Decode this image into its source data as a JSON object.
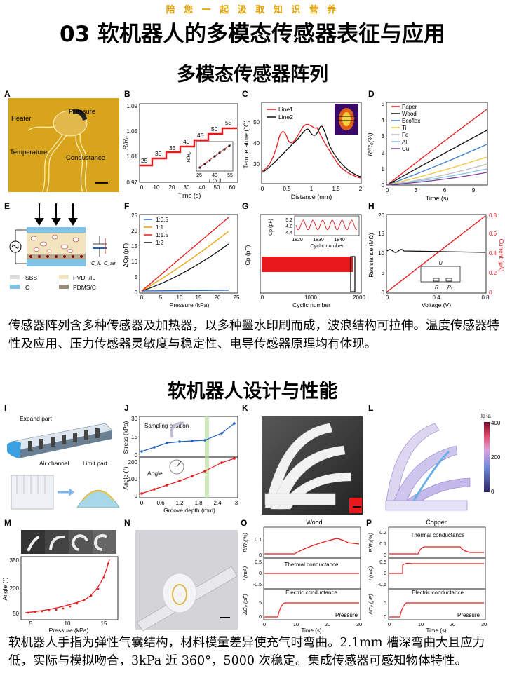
{
  "banner": "陪 您 一 起 汲 取 知 识 营 养",
  "title": "03 软机器人的多模态传感器表征与应用",
  "section1": {
    "title": "多模态传感器阵列",
    "caption": "传感器阵列含多种传感器及加热器，以多种墨水印刷而成，波浪结构可拉伸。温度传感器特性及应用、压力传感器灵敏度与稳定性、电导传感器原理均有体现。"
  },
  "section2": {
    "title": "软机器人设计与性能",
    "caption": "软机器人手指为弹性气囊结构，材料模量差异使充气时弯曲。2.1mm 槽深弯曲大且应力低，实际与模拟吻合，3kPa 近 360°，5000 次稳定。集成传感器可感知物体特性。"
  },
  "panels": {
    "A": {
      "label": "A",
      "heater": "Heater",
      "pressure": "Pressure",
      "temperature": "Temperature",
      "conductance": "Conductance"
    },
    "B": {
      "label": "B",
      "ylabel": "R/R₀",
      "xlabel": "Time (s)",
      "yticks": [
        "0.97",
        "1.01",
        "1.05",
        "1.09"
      ],
      "xticks": [
        "0",
        "10",
        "20",
        "30",
        "40",
        "50",
        "60"
      ],
      "steps": [
        "25",
        "30",
        "35",
        "40",
        "45",
        "50",
        "55"
      ],
      "inset_ylabel": "R/R₀",
      "inset_xlabel": "T (°C)",
      "inset_xticks": [
        "25",
        "40",
        "55"
      ]
    },
    "C": {
      "label": "C",
      "ylabel": "Temperature (°C)",
      "xlabel": "Distance (mm)",
      "yticks": [
        "30",
        "40",
        "50"
      ],
      "xticks": [
        "0",
        "0.5",
        "1",
        "1.5",
        "2"
      ],
      "legend": [
        "Line1",
        "Line2"
      ]
    },
    "D": {
      "label": "D",
      "ylabel": "R/R₀(%)",
      "xlabel": "Time (s)",
      "yticks": [
        "0",
        "1",
        "2",
        "3",
        "4",
        "5"
      ],
      "xticks": [
        "0",
        "3",
        "6",
        "9"
      ],
      "legend": [
        "Paper",
        "Wood",
        "Ecoflex",
        "Ti",
        "Fe",
        "Al",
        "Cu"
      ]
    },
    "E": {
      "label": "E",
      "legend": [
        "SBS",
        "PVDF/IL",
        "C",
        "PDMS/C"
      ],
      "c_il": "C_IL",
      "c_air": "C_air"
    },
    "F": {
      "label": "F",
      "ylabel": "ΔCp (pF)",
      "xlabel": "Pressure (kPa)",
      "yticks": [
        "0",
        "5",
        "10",
        "15",
        "20",
        "25"
      ],
      "xticks": [
        "0",
        "5",
        "10",
        "15",
        "20",
        "25"
      ],
      "legend": [
        "1:0.5",
        "1:1",
        "1:1.5",
        "1:2"
      ]
    },
    "G": {
      "label": "G",
      "ylabel": "Cp (pF)",
      "xlabel": "Cyclic number",
      "xticks": [
        "0",
        "1000",
        "2000"
      ],
      "inset_ylabel": "Cp (pF)",
      "inset_yticks": [
        "4.4",
        "4.8",
        "5.2"
      ],
      "inset_xticks": [
        "1820",
        "1830",
        "1840"
      ],
      "inset_xlabel": "Cyclic number"
    },
    "H": {
      "label": "H",
      "ylabel_left": "Resistance (MΩ)",
      "ylabel_right": "Current (μA)",
      "xlabel": "Voltage (V)",
      "yticks_left": [
        "0",
        "5",
        "10",
        "15",
        "20"
      ],
      "yticks_right": [
        "0",
        "0.2",
        "0.4",
        "0.6",
        "0.8"
      ],
      "xticks": [
        "0",
        "0.4",
        "0.8"
      ],
      "circuit_u": "U",
      "circuit_r": "R",
      "circuit_rx": "Rₓ"
    },
    "I": {
      "label": "I",
      "expand": "Expand part",
      "air": "Air channel",
      "limit": "Limit part"
    },
    "J": {
      "label": "J",
      "ylabel_top": "Stress (kPa)",
      "ylabel_bottom": "Angle (°)",
      "xlabel": "Groove depth (mm)",
      "yticks_top": [
        "0",
        "15",
        "30"
      ],
      "yticks_bottom": [
        "0",
        "100",
        "200"
      ],
      "xticks": [
        "0",
        "0.6",
        "1.2",
        "1.8",
        "2.4",
        "3"
      ],
      "note_sampling": "Sampling position",
      "note_angle": "Angle"
    },
    "K": {
      "label": "K"
    },
    "L": {
      "label": "L",
      "unit": "kPa",
      "ticks": [
        "400",
        "200",
        "0"
      ]
    },
    "M": {
      "label": "M",
      "ylabel": "Angle (°)",
      "xlabel": "Pressure (kPa)",
      "yticks": [
        "50",
        "200",
        "350"
      ],
      "xticks": [
        "5",
        "10",
        "15"
      ]
    },
    "N": {
      "label": "N"
    },
    "O": {
      "label": "O",
      "title": "Wood",
      "y1": "R/R₀(%)",
      "y2": "I (mA)",
      "y3": "ΔCₚ (pF)",
      "t1": "Thermal conductance",
      "t2": "Electric conductance",
      "t3": "Pressure",
      "xlabel": "Time (s)",
      "xticks": [
        "0",
        "10",
        "20",
        "30"
      ],
      "y1ticks": [
        "0",
        "0.1"
      ],
      "y2ticks": [
        "-0.5",
        "0",
        "0.5"
      ],
      "y3ticks": [
        "0",
        "5"
      ]
    },
    "P": {
      "label": "P",
      "title": "Copper",
      "y1": "R/R₀(%)",
      "y2": "I (mA)",
      "y3": "ΔCₚ (pF)",
      "t1": "Thermal conductance",
      "t2": "Electric conductance",
      "t3": "Pressure",
      "xlabel": "Time (s)",
      "xticks": [
        "0",
        "10",
        "20",
        "30"
      ],
      "y1ticks": [
        "0",
        "0.1",
        "0.2"
      ],
      "y2ticks": [
        "-0.5",
        "0",
        "0.5"
      ],
      "y3ticks": [
        "0",
        "5"
      ]
    }
  },
  "colors": {
    "red": "#e8191c",
    "black": "#111111",
    "banner": "#e0a000",
    "blue": "#2060c0",
    "orange": "#f0a000"
  }
}
